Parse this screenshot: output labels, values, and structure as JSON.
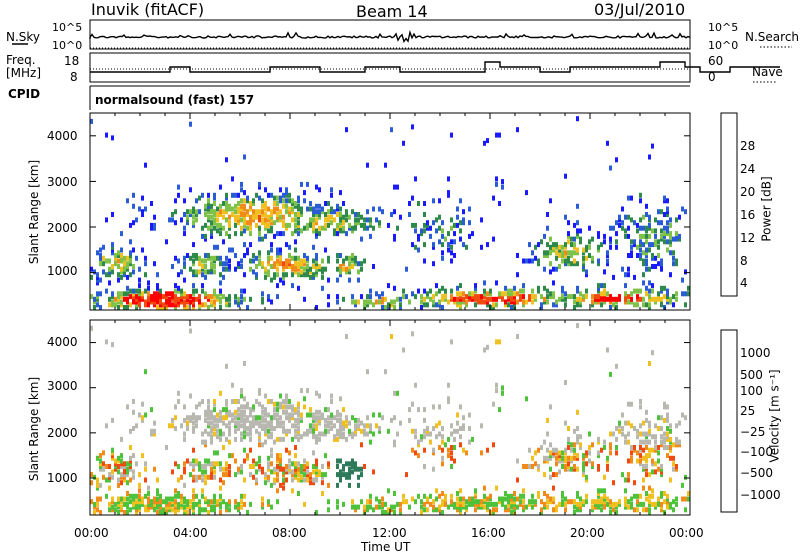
{
  "header": {
    "station": "Inuvik (fitACF)",
    "beam": "Beam 14",
    "date": "03/Jul/2010"
  },
  "noise_panel": {
    "left_label": "N.Sky",
    "right_label": "N.Search",
    "ytick_top": "10^5",
    "ytick_bottom": "10^0"
  },
  "freq_panel": {
    "left_label_line1": "Freq.",
    "left_label_line2": "[MHz]",
    "left_ticks": [
      "18",
      "8"
    ],
    "right_label": "Nave",
    "right_ticks": [
      "60",
      "0"
    ]
  },
  "cpid_panel": {
    "label": "CPID",
    "mode": "normalsound (fast) 157"
  },
  "power_colorbar": {
    "title": "Power [dB]",
    "ticks": [
      "28",
      "24",
      "20",
      "16",
      "12",
      "8",
      "4"
    ],
    "colors": [
      "#1a1aff",
      "#2a5cd6",
      "#2e8a4a",
      "#7ec24a",
      "#f0c020",
      "#f08a1a",
      "#f04a10",
      "#ff0000"
    ]
  },
  "velocity_colorbar": {
    "title": "Velocity [m s⁻¹]",
    "ticks": [
      "1000",
      "500",
      "100",
      "25",
      "−25",
      "−100",
      "−500",
      "−1000"
    ],
    "colors": [
      "#1a3ad0",
      "#2a6ab8",
      "#2e7a5a",
      "#4ec23a",
      "#b8b8b0",
      "#f0c020",
      "#f08a1a",
      "#f04a10",
      "#ff0000"
    ]
  },
  "chart_data": [
    {
      "type": "heatmap",
      "name": "power",
      "xlabel": "Time UT",
      "ylabel": "Slant Range [km]",
      "xticks": [
        "00:00",
        "04:00",
        "08:00",
        "12:00",
        "16:00",
        "20:00",
        "00:00"
      ],
      "yticks": [
        1000,
        2000,
        3000,
        4000
      ],
      "ylim": [
        180,
        4500
      ],
      "units": "dB",
      "clim": [
        0,
        30
      ]
    },
    {
      "type": "heatmap",
      "name": "velocity",
      "xlabel": "Time UT",
      "ylabel": "Slant Range [km]",
      "xticks": [
        "00:00",
        "04:00",
        "08:00",
        "12:00",
        "16:00",
        "20:00",
        "00:00"
      ],
      "yticks": [
        1000,
        2000,
        3000,
        4000
      ],
      "ylim": [
        180,
        4500
      ],
      "units": "m s-1",
      "clim": [
        -1000,
        1000
      ]
    }
  ],
  "xaxis": {
    "label": "Time UT",
    "ticks": [
      "00:00",
      "04:00",
      "08:00",
      "12:00",
      "16:00",
      "20:00",
      "00:00"
    ]
  },
  "power_ylabel": "Slant Range [km]",
  "velocity_ylabel": "Slant Range [km]",
  "yticks_labels": [
    "1000",
    "2000",
    "3000",
    "4000"
  ]
}
